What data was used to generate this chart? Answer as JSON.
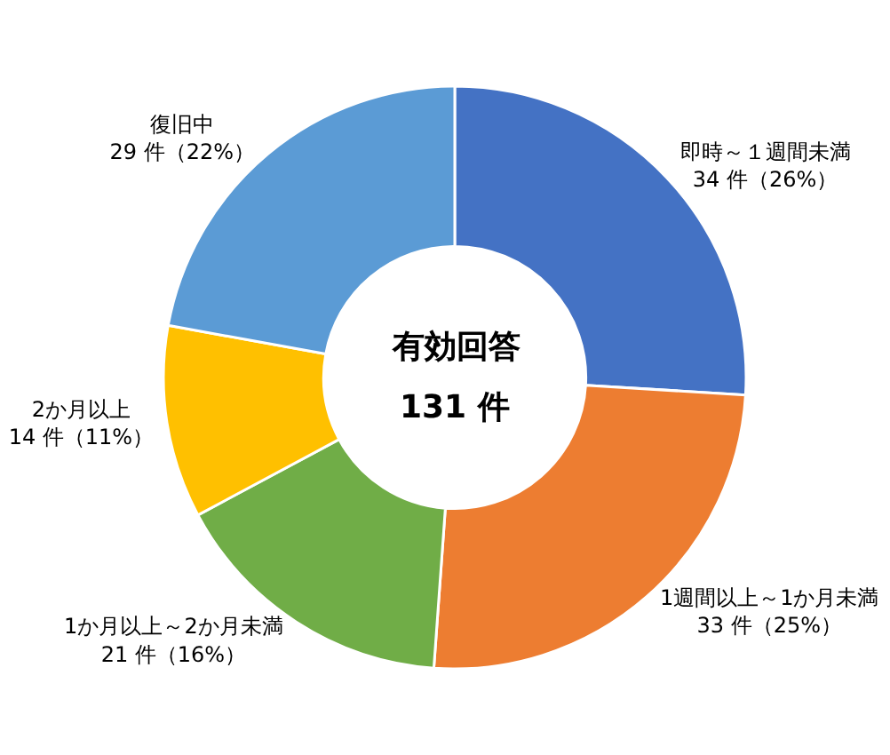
{
  "chart_data": {
    "type": "donut",
    "categories": [
      "即時～１週間未満",
      "1週間以上～1か月未満",
      "1か月以上～2か月未満",
      "2か月以上",
      "復旧中"
    ],
    "values": [
      34,
      33,
      21,
      14,
      29
    ],
    "value_labels": [
      "34 件（26%）",
      "33 件（25%）",
      "21 件（16%）",
      "14 件（11%）",
      "29 件（22%）"
    ],
    "colors": [
      "#4472c4",
      "#ed7d31",
      "#70ad47",
      "#ffc000",
      "#5b9bd5"
    ],
    "annotations": [
      "有効回答",
      "131 件"
    ],
    "legend": false
  }
}
